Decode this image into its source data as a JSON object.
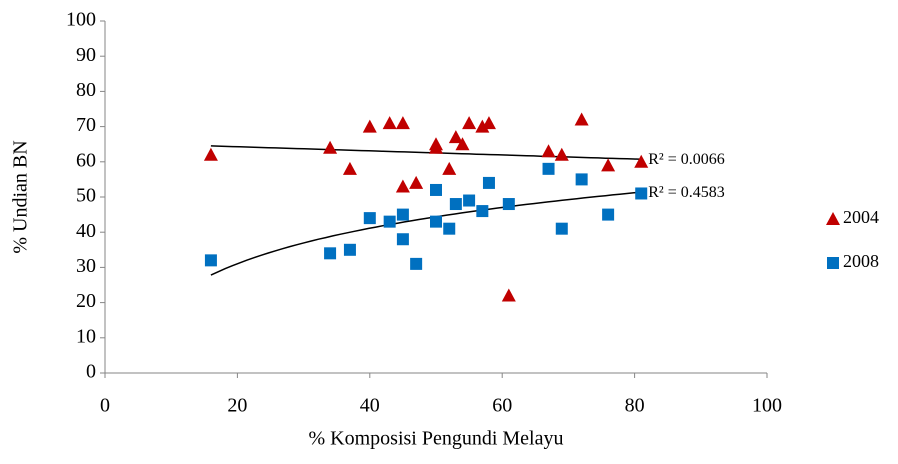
{
  "chart_data": {
    "type": "scatter",
    "x_label": "% Komposisi Pengundi Melayu",
    "y_label": "% Undian BN",
    "xlim": [
      0,
      100
    ],
    "xticks": [
      0,
      20,
      40,
      60,
      80,
      100
    ],
    "ylim": [
      0,
      100
    ],
    "yticks": [
      0,
      10,
      20,
      30,
      40,
      50,
      60,
      70,
      80,
      90,
      100
    ],
    "legend": "right",
    "series": [
      {
        "name": "2004",
        "color": "#c00000",
        "marker": "triangle",
        "trendline": "linear",
        "r2_label": "R² = 0.0066",
        "x": [
          16,
          34,
          37,
          40,
          43,
          45,
          45,
          47,
          50,
          50,
          52,
          53,
          54,
          55,
          57,
          58,
          61,
          67,
          69,
          72,
          76,
          81
        ],
        "values": [
          62,
          64,
          58,
          70,
          71,
          71,
          53,
          54,
          65,
          64,
          58,
          67,
          65,
          71,
          70,
          71,
          22,
          63,
          62,
          72,
          59,
          60
        ]
      },
      {
        "name": "2008",
        "color": "#0070c0",
        "marker": "square",
        "trendline": "logarithmic",
        "r2_label": "R² = 0.4583",
        "x": [
          16,
          34,
          37,
          40,
          43,
          45,
          45,
          47,
          50,
          50,
          52,
          53,
          55,
          57,
          58,
          61,
          67,
          69,
          72,
          76,
          81
        ],
        "values": [
          32,
          34,
          35,
          44,
          43,
          45,
          38,
          31,
          52,
          43,
          41,
          48,
          49,
          46,
          54,
          48,
          58,
          41,
          55,
          45,
          51
        ]
      }
    ]
  }
}
